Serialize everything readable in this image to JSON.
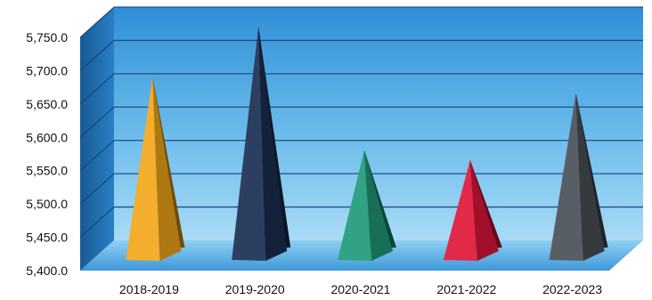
{
  "chart_data": {
    "type": "bar",
    "style": "3d-pyramid",
    "categories": [
      "2018-2019",
      "2019-2020",
      "2020-2021",
      "2021-2022",
      "2022-2023"
    ],
    "values": [
      5675,
      5750,
      5565,
      5550,
      5650
    ],
    "colors": [
      "#f2a71b",
      "#1b2e52",
      "#1f9a78",
      "#e0163a",
      "#4a5058"
    ],
    "title": "",
    "xlabel": "",
    "ylabel": "",
    "ylim": [
      5400,
      5750
    ],
    "yticks": [
      "5,400.0",
      "5,450.0",
      "5,500.0",
      "5,550.0",
      "5,600.0",
      "5,650.0",
      "5,700.0",
      "5,750.0"
    ],
    "grid": true,
    "legend": "none",
    "background_color": "#4aa8e3"
  }
}
